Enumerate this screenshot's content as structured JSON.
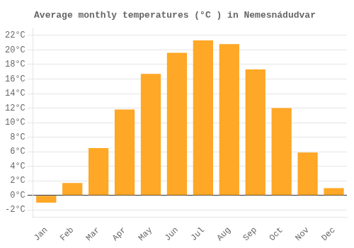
{
  "chart_data": {
    "type": "bar",
    "title": "Average monthly temperatures (°C ) in Nemesnádudvar",
    "categories": [
      "Jan",
      "Feb",
      "Mar",
      "Apr",
      "May",
      "Jun",
      "Jul",
      "Aug",
      "Sep",
      "Oct",
      "Nov",
      "Dec"
    ],
    "values": [
      -1.0,
      1.7,
      6.5,
      11.8,
      16.7,
      19.6,
      21.3,
      20.8,
      17.3,
      12.0,
      5.9,
      1.0
    ],
    "color": "#FFA726",
    "ylim": [
      -3,
      23
    ],
    "yticks": [
      {
        "value": -2,
        "label": "-2°C"
      },
      {
        "value": 0,
        "label": "0°C"
      },
      {
        "value": 2,
        "label": "2°C"
      },
      {
        "value": 4,
        "label": "4°C"
      },
      {
        "value": 6,
        "label": "6°C"
      },
      {
        "value": 8,
        "label": "8°C"
      },
      {
        "value": 10,
        "label": "10°C"
      },
      {
        "value": 12,
        "label": "12°C"
      },
      {
        "value": 14,
        "label": "14°C"
      },
      {
        "value": 16,
        "label": "16°C"
      },
      {
        "value": 18,
        "label": "18°C"
      },
      {
        "value": 20,
        "label": "20°C"
      },
      {
        "value": 22,
        "label": "22°C"
      }
    ],
    "grid": true
  }
}
